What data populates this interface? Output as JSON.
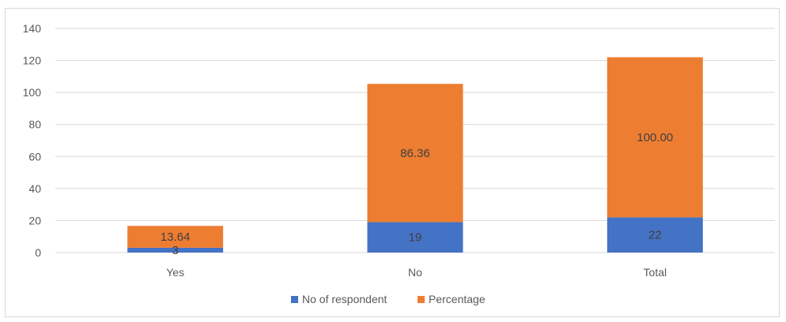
{
  "chart_data": {
    "type": "bar",
    "stacked": true,
    "categories": [
      "Yes",
      "No",
      "Total"
    ],
    "series": [
      {
        "name": "No of respondent",
        "values": [
          3,
          19,
          22
        ],
        "labels": [
          "3",
          "19",
          "22"
        ],
        "color": "#4472c4"
      },
      {
        "name": "Percentage",
        "values": [
          13.64,
          86.36,
          100.0
        ],
        "labels": [
          "13.64",
          "86.36",
          "100.00"
        ],
        "color": "#ed7d31"
      }
    ],
    "ylim": [
      0,
      140
    ],
    "yticks": [
      "0",
      "20",
      "40",
      "60",
      "80",
      "100",
      "120",
      "140"
    ],
    "grid": true,
    "legend_position": "bottom",
    "title": "",
    "xlabel": "",
    "ylabel": ""
  }
}
